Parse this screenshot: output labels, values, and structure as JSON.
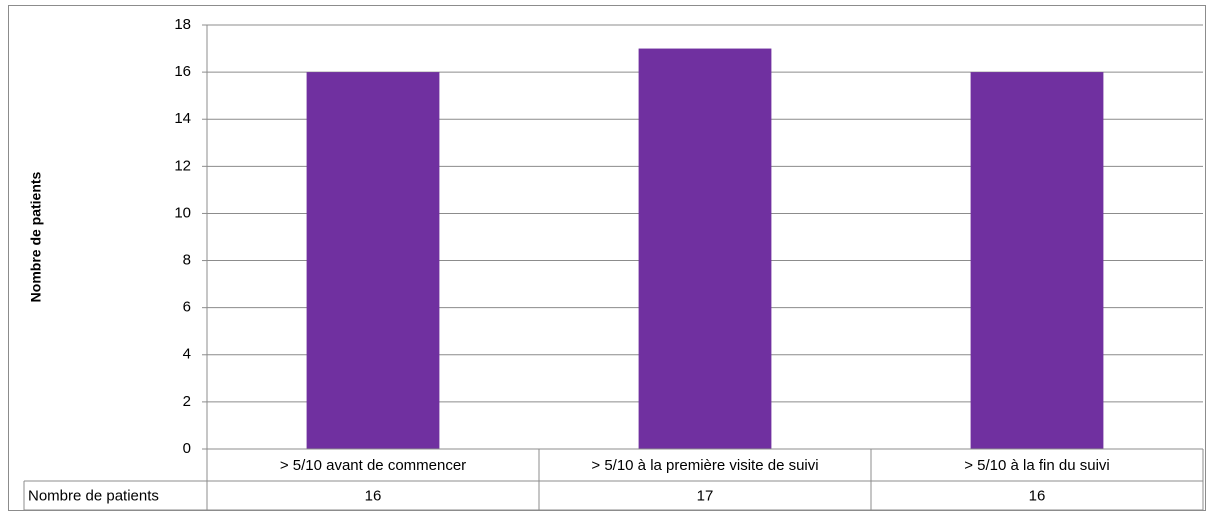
{
  "chart_data": {
    "type": "bar",
    "ylabel": "Nombre de patients",
    "categories": [
      "> 5/10 avant de commencer",
      "> 5/10 à la première visite de suivi",
      "> 5/10 à la fin du suivi"
    ],
    "series": [
      {
        "name": "Nombre de patients",
        "color": "#7030a0",
        "values": [
          16,
          17,
          16
        ]
      }
    ],
    "ylim": [
      0,
      18
    ],
    "yticks": [
      0,
      2,
      4,
      6,
      8,
      10,
      12,
      14,
      16,
      18
    ],
    "grid": true,
    "data_table": true
  }
}
